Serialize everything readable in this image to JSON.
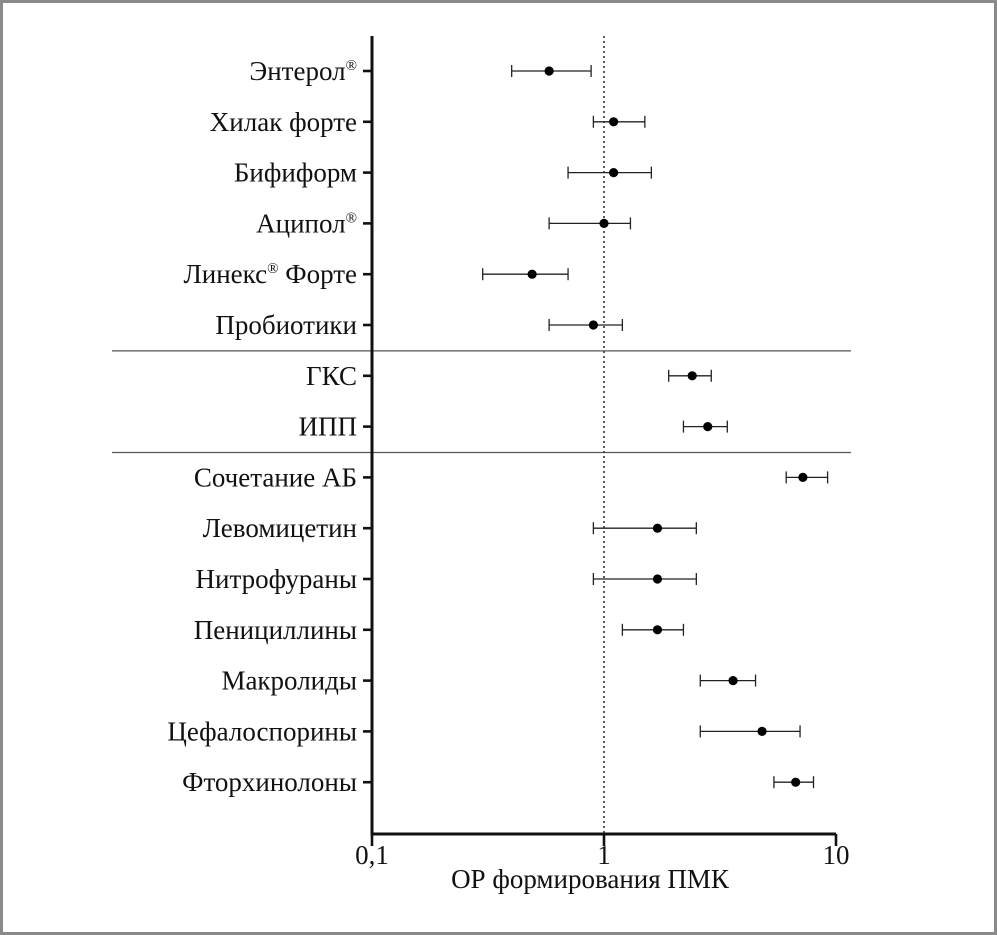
{
  "chart_data": {
    "type": "scatter",
    "subtype": "forest-plot",
    "xscale": "log",
    "xlim": [
      0.1,
      10
    ],
    "xlabel": "ОР формирования ПМК",
    "ylabel": "",
    "title": "",
    "xticks": [
      {
        "value": 0.1,
        "label": "0,1"
      },
      {
        "value": 1,
        "label": "1"
      },
      {
        "value": 10,
        "label": "10"
      }
    ],
    "reference_line": {
      "value": 1,
      "style": "dotted"
    },
    "group_separators_after": [
      5,
      7
    ],
    "categories": [
      {
        "label": "Энтерол",
        "sup": "®",
        "est": 0.58,
        "lo": 0.4,
        "hi": 0.88
      },
      {
        "label": "Хилак форте",
        "sup": "",
        "est": 1.1,
        "lo": 0.9,
        "hi": 1.5
      },
      {
        "label": "Бифиформ",
        "sup": "",
        "est": 1.1,
        "lo": 0.7,
        "hi": 1.6
      },
      {
        "label": "Аципол",
        "sup": "®",
        "est": 1.0,
        "lo": 0.58,
        "hi": 1.3
      },
      {
        "label": "Линекс",
        "sup": "®",
        "suffix": " Форте",
        "est": 0.49,
        "lo": 0.3,
        "hi": 0.7
      },
      {
        "label": "Пробиотики",
        "sup": "",
        "est": 0.9,
        "lo": 0.58,
        "hi": 1.2
      },
      {
        "label": "ГКС",
        "sup": "",
        "est": 2.4,
        "lo": 1.9,
        "hi": 2.9
      },
      {
        "label": "ИПП",
        "sup": "",
        "est": 2.8,
        "lo": 2.2,
        "hi": 3.4
      },
      {
        "label": "Сочетание АБ",
        "sup": "",
        "est": 7.2,
        "lo": 6.1,
        "hi": 9.2
      },
      {
        "label": "Левомицетин",
        "sup": "",
        "est": 1.7,
        "lo": 0.9,
        "hi": 2.5
      },
      {
        "label": "Нитрофураны",
        "sup": "",
        "est": 1.7,
        "lo": 0.9,
        "hi": 2.5
      },
      {
        "label": "Пенициллины",
        "sup": "",
        "est": 1.7,
        "lo": 1.2,
        "hi": 2.2
      },
      {
        "label": "Макролиды",
        "sup": "",
        "est": 3.6,
        "lo": 2.6,
        "hi": 4.5
      },
      {
        "label": "Цефалоспорины",
        "sup": "",
        "est": 4.8,
        "lo": 2.6,
        "hi": 7.0
      },
      {
        "label": "Фторхинолоны",
        "sup": "",
        "est": 6.7,
        "lo": 5.4,
        "hi": 8.0
      }
    ]
  }
}
